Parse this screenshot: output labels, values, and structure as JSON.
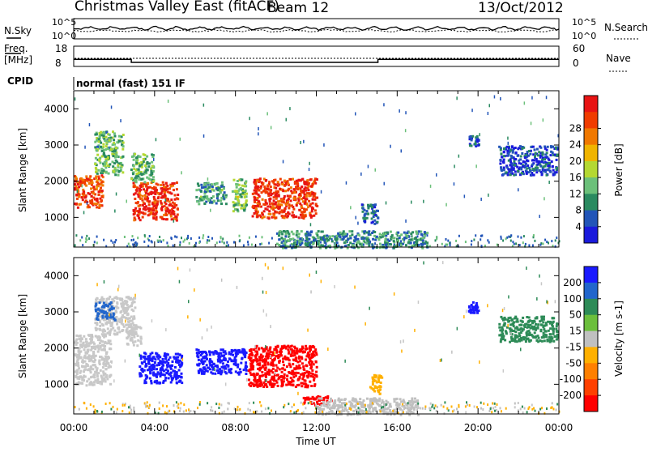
{
  "header": {
    "title": "Christmas Valley East (fitACF)",
    "beam": "Beam 12",
    "date": "13/Oct/2012"
  },
  "strip": {
    "nsky_label": "N.Sky",
    "nsky_ticks": [
      "10^5",
      "10^0"
    ],
    "nsearch_label": "N.Search",
    "nsearch_ticks": [
      "10^5",
      "10^0"
    ],
    "freq_label_1": "Freq.",
    "freq_label_2": "[MHz]",
    "freq_ticks": [
      "18",
      "8"
    ],
    "nave_label": "Nave",
    "nave_ticks": [
      "60",
      "0"
    ],
    "cpid_label": "CPID",
    "cpid_value": "normal (fast) 151 IF"
  },
  "colors": {
    "power_scale": [
      "#1a1adc",
      "#2255b8",
      "#2a8a60",
      "#6cc07a",
      "#b4d832",
      "#f0b400",
      "#f07800",
      "#f03c00",
      "#e81414"
    ],
    "velocity_scale": [
      "#1a1aff",
      "#2266cc",
      "#2d8b57",
      "#6cbf3c",
      "#c0c0c0",
      "#ffb000",
      "#ff8000",
      "#ff4000",
      "#ff0000"
    ],
    "ground_scatter": "#c8c8c8"
  },
  "chart_data": [
    {
      "type": "heatmap",
      "panel": "power",
      "xlabel": "",
      "ylabel": "Slant Range [km]",
      "x_range": [
        "00:00",
        "00:00"
      ],
      "ylim": [
        180,
        4500
      ],
      "yticks": [
        "1000",
        "2000",
        "3000",
        "4000"
      ],
      "colorbar_label": "Power [dB]",
      "colorbar_ticks": [
        "4",
        "8",
        "12",
        "16",
        "20",
        "24",
        "28"
      ],
      "colorbar_range": [
        0,
        32
      ],
      "blobs": [
        {
          "t0": 0.0,
          "t1": 1.4,
          "r0": 1300,
          "r1": 2200,
          "v": 26
        },
        {
          "t0": 1.0,
          "t1": 2.4,
          "r0": 2200,
          "r1": 3400,
          "v": 12
        },
        {
          "t0": 2.9,
          "t1": 5.1,
          "r0": 950,
          "r1": 2000,
          "v": 28
        },
        {
          "t0": 2.8,
          "t1": 3.9,
          "r0": 2000,
          "r1": 2800,
          "v": 12
        },
        {
          "t0": 6.0,
          "t1": 7.5,
          "r0": 1400,
          "r1": 2000,
          "v": 10
        },
        {
          "t0": 7.8,
          "t1": 8.5,
          "r0": 1200,
          "r1": 2100,
          "v": 14
        },
        {
          "t0": 8.8,
          "t1": 12.0,
          "r0": 1000,
          "r1": 2100,
          "v": 28
        },
        {
          "t0": 14.2,
          "t1": 15.0,
          "r0": 850,
          "r1": 1400,
          "v": 6
        },
        {
          "t0": 10.0,
          "t1": 17.5,
          "r0": 180,
          "r1": 650,
          "v": 9
        },
        {
          "t0": 19.5,
          "t1": 20.0,
          "r0": 3000,
          "r1": 3300,
          "v": 5
        },
        {
          "t0": 21.0,
          "t1": 23.9,
          "r0": 2200,
          "r1": 3000,
          "v": 4
        }
      ]
    },
    {
      "type": "heatmap",
      "panel": "velocity",
      "xlabel": "Time UT",
      "ylabel": "Slant Range [km]",
      "x_range": [
        "00:00",
        "00:00"
      ],
      "ylim": [
        180,
        4500
      ],
      "xticks": [
        "00:00",
        "04:00",
        "08:00",
        "12:00",
        "16:00",
        "20:00",
        "00:00"
      ],
      "yticks": [
        "1000",
        "2000",
        "3000",
        "4000"
      ],
      "colorbar_label": "Velocity [m s-1]",
      "colorbar_ticks": [
        "200",
        "100",
        "50",
        "15",
        "-15",
        "-50",
        "-100",
        "-200"
      ],
      "colorbar_range": [
        -250,
        250
      ],
      "blobs": [
        {
          "t0": 0.0,
          "t1": 1.8,
          "r0": 1000,
          "r1": 2400,
          "v": "gs"
        },
        {
          "t0": 1.0,
          "t1": 3.0,
          "r0": 2400,
          "r1": 3450,
          "v": "gs"
        },
        {
          "t0": 1.0,
          "t1": 2.0,
          "r0": 2800,
          "r1": 3300,
          "v": 150
        },
        {
          "t0": 2.5,
          "t1": 3.3,
          "r0": 2100,
          "r1": 2700,
          "v": "gs"
        },
        {
          "t0": 3.2,
          "t1": 5.3,
          "r0": 1050,
          "r1": 1900,
          "v": 220
        },
        {
          "t0": 6.0,
          "t1": 8.5,
          "r0": 1300,
          "r1": 2000,
          "v": 200
        },
        {
          "t0": 8.6,
          "t1": 12.0,
          "r0": 950,
          "r1": 2100,
          "v": -220
        },
        {
          "t0": 11.3,
          "t1": 12.7,
          "r0": 450,
          "r1": 700,
          "v": -220
        },
        {
          "t0": 14.6,
          "t1": 15.2,
          "r0": 750,
          "r1": 1300,
          "v": -80
        },
        {
          "t0": 12.0,
          "t1": 17.0,
          "r0": 180,
          "r1": 650,
          "v": 20
        },
        {
          "t0": 19.5,
          "t1": 20.0,
          "r0": 3000,
          "r1": 3300,
          "v": 200
        },
        {
          "t0": 21.0,
          "t1": 23.9,
          "r0": 2200,
          "r1": 2900,
          "v": 120
        }
      ]
    },
    {
      "type": "line",
      "panel": "frequency",
      "x": [
        0,
        2.85,
        2.85,
        15.05,
        15.05,
        24
      ],
      "y": [
        11.5,
        11.5,
        10.0,
        10.0,
        11.5,
        11.5
      ]
    }
  ]
}
